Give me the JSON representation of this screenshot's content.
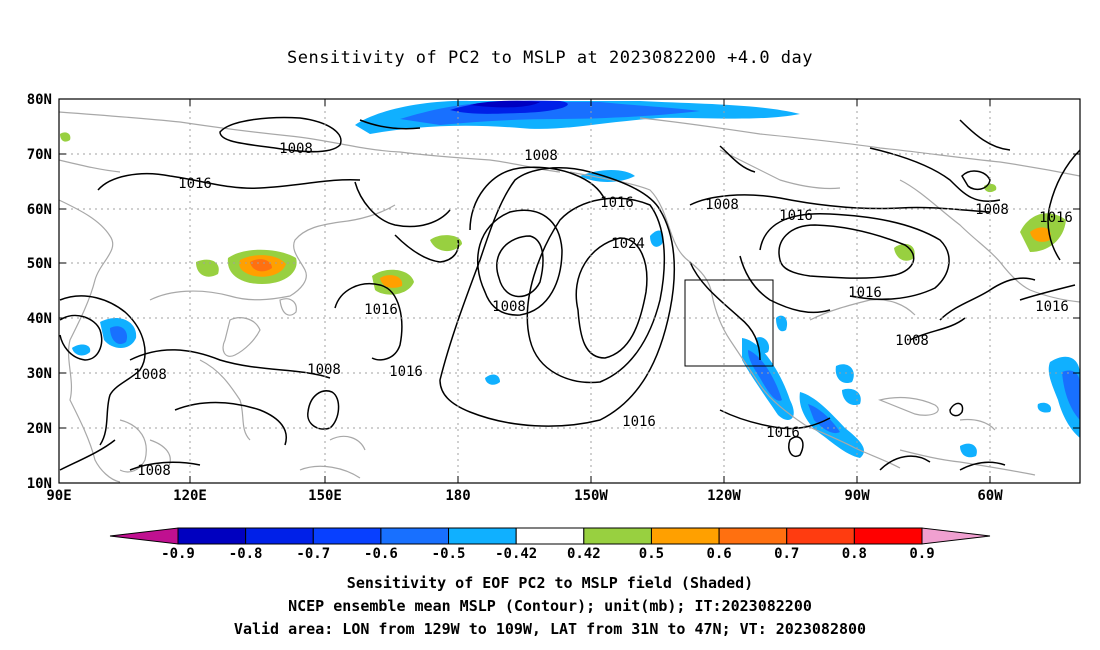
{
  "title": "Sensitivity of PC2 to MSLP at 2023082200 +4.0 day",
  "lat_labels": [
    "80N",
    "70N",
    "60N",
    "50N",
    "40N",
    "30N",
    "20N",
    "10N"
  ],
  "lon_labels": [
    "90E",
    "120E",
    "150E",
    "180",
    "150W",
    "120W",
    "90W",
    "60W"
  ],
  "contour_labels": [
    "1008",
    "1008",
    "1016",
    "1016",
    "1008",
    "1016",
    "1024",
    "1008",
    "1016",
    "1016",
    "1008",
    "1016",
    "1016",
    "1016",
    "1008",
    "1008",
    "1016",
    "1008",
    "1016",
    "1008"
  ],
  "colorbar": {
    "labels": [
      "-0.9",
      "-0.8",
      "-0.7",
      "-0.6",
      "-0.5",
      "-0.42",
      "0.42",
      "0.5",
      "0.6",
      "0.7",
      "0.8",
      "0.9"
    ],
    "colors": [
      "#0000c0",
      "#0020e8",
      "#0840ff",
      "#1870ff",
      "#10b0ff",
      "#ffffff",
      "#98d040",
      "#ffa000",
      "#ff7010",
      "#ff3c10",
      "#ff0000"
    ],
    "low_end": "#c01090",
    "high_end": "#f0a0d0"
  },
  "captions": {
    "line1": "Sensitivity of EOF PC2 to MSLP field (Shaded)",
    "line2": "NCEP ensemble mean MSLP (Contour); unit(mb); IT:2023082200",
    "line3": "Valid area: LON from 129W to 109W, LAT from 31N to 47N; VT: 2023082800"
  },
  "colors": {
    "contour": "#000000",
    "coastline": "#a8a8a8",
    "gridline": "#a0a0a0"
  }
}
